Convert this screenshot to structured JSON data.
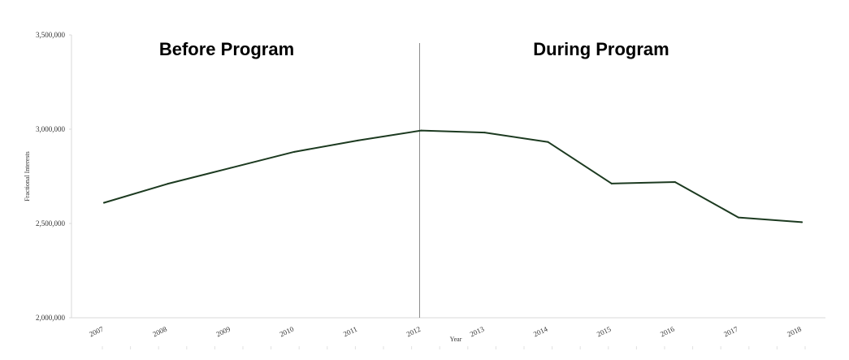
{
  "chart_data": {
    "type": "line",
    "title": "",
    "xlabel": "Year",
    "ylabel": "Fractional Interests",
    "x": [
      "2007",
      "2008",
      "2009",
      "2010",
      "2011",
      "2012",
      "2013",
      "2014",
      "2015",
      "2016",
      "2017",
      "2018"
    ],
    "series": [
      {
        "values": [
          2610000,
          2710000,
          2795000,
          2880000,
          2940000,
          2993000,
          2982000,
          2932000,
          2712000,
          2720000,
          2532000,
          2507000
        ],
        "color": "#1c3a20"
      }
    ],
    "ylim": [
      2000000,
      3500000
    ],
    "yticks": [
      "2,000,000",
      "2,500,000",
      "3,000,000",
      "3,500,000"
    ],
    "grid": false,
    "divider_at": "2012",
    "divider_color": "#888888",
    "annotations": [
      {
        "text": "Before Program",
        "region": "before"
      },
      {
        "text": "During Program",
        "region": "during"
      }
    ]
  }
}
